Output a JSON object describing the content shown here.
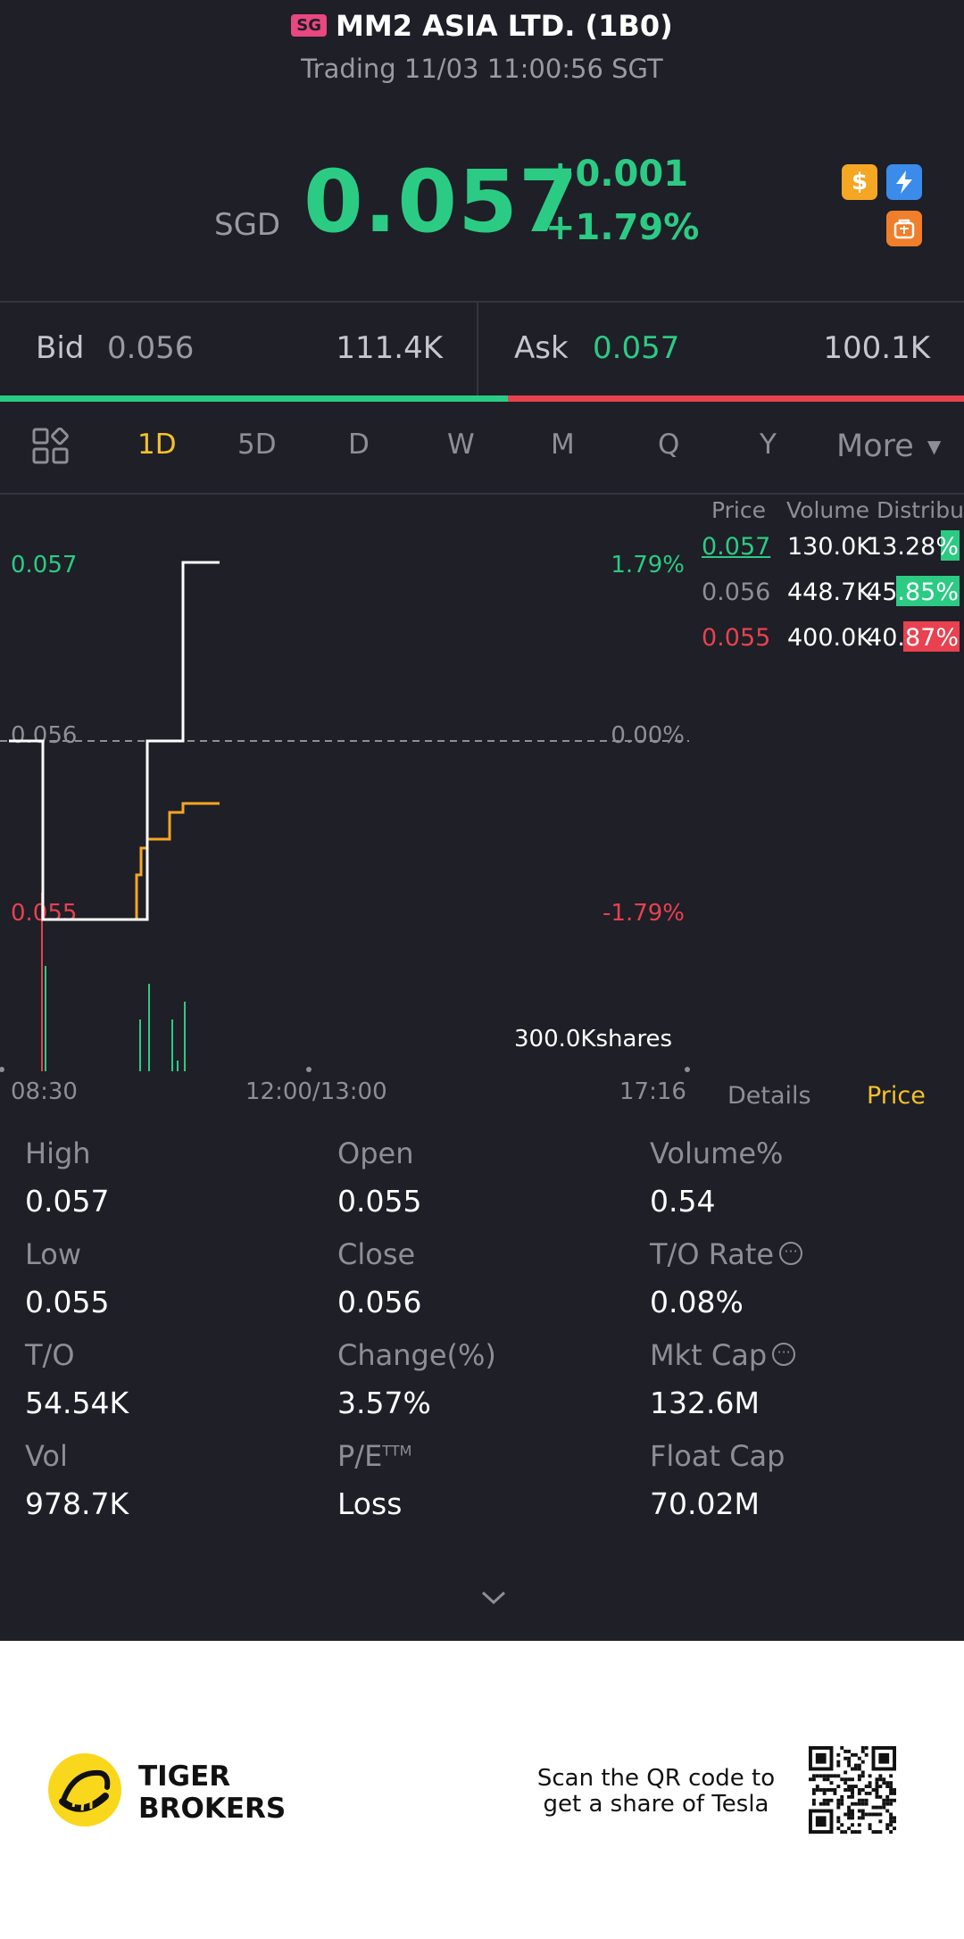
{
  "header": {
    "market_badge": "SG",
    "title": "MM2 ASIA LTD. (1B0)",
    "status": "Trading 11/03 11:00:56 SGT"
  },
  "quote": {
    "currency": "SGD",
    "last": "0.057",
    "change": "+0.001",
    "change_pct": "+1.79%",
    "up_color": "#2bcb84",
    "down_color": "#e8414f",
    "icons": [
      "dollar-icon",
      "lightning-icon",
      "bag-icon"
    ]
  },
  "bid_ask": {
    "bid_label": "Bid",
    "bid_price": "0.056",
    "bid_size": "111.4K",
    "ask_label": "Ask",
    "ask_price": "0.057",
    "ask_size": "100.1K",
    "bid_share": 0.527
  },
  "period_tabs": [
    "1D",
    "5D",
    "D",
    "W",
    "M",
    "Q",
    "Y"
  ],
  "period_more": "More",
  "active_period": "1D",
  "distribution": {
    "headers": [
      "Price",
      "Volume",
      "Distribu"
    ],
    "rows": [
      {
        "price": "0.057",
        "volume": "130.0K",
        "pct": "13.28%",
        "fill": 0.1328,
        "color": "#2bcb84"
      },
      {
        "price": "0.056",
        "volume": "448.7K",
        "pct": "45.85%",
        "fill": 0.4585,
        "color": "#2bcb84"
      },
      {
        "price": "0.055",
        "volume": "400.0K",
        "pct": "40.87%",
        "fill": 0.4087,
        "color": "#e8414f"
      }
    ]
  },
  "chart_data": {
    "type": "line",
    "y_left_ticks": [
      "0.057",
      "0.056",
      "0.055"
    ],
    "y_right_ticks": [
      "1.79%",
      "0.00%",
      "-1.79%"
    ],
    "x_ticks": [
      "08:30",
      "12:00/13:00",
      "17:16"
    ],
    "ylim": [
      0.055,
      0.057
    ],
    "reference_price": 0.056,
    "series": [
      {
        "values": [
          0.056,
          0.056,
          0.055,
          0.055,
          0.055,
          0.056,
          0.056,
          0.057,
          0.057
        ],
        "color": "#ffffff"
      },
      {
        "values": [
          0.056,
          0.055,
          0.055,
          0.05525,
          0.0554,
          0.05545,
          0.0556,
          0.05565,
          0.05565
        ],
        "color": "#f5a623"
      }
    ],
    "volume_label": "300.0Kshares"
  },
  "side_tabs": {
    "details": "Details",
    "price": "Price"
  },
  "stats": [
    [
      {
        "label": "High",
        "value": "0.057"
      },
      {
        "label": "Open",
        "value": "0.055"
      },
      {
        "label": "Volume%",
        "value": "0.54"
      }
    ],
    [
      {
        "label": "Low",
        "value": "0.055"
      },
      {
        "label": "Close",
        "value": "0.056"
      },
      {
        "label": "T/O Rate",
        "value": "0.08%"
      }
    ],
    [
      {
        "label": "T/O",
        "value": "54.54K"
      },
      {
        "label": "Change(%)",
        "value": "3.57%"
      },
      {
        "label": "Mkt Cap",
        "value": "132.6M"
      }
    ],
    [
      {
        "label": "Vol",
        "value": "978.7K"
      },
      {
        "label": "P/E",
        "value": "Loss"
      },
      {
        "label": "Float Cap",
        "value": "70.02M"
      }
    ]
  ],
  "pe_suffix": "TTM",
  "footer": {
    "brand_line1": "TIGER",
    "brand_line2": "BROKERS",
    "cta_line1": "Scan the QR code to",
    "cta_line2": "get a share of Tesla"
  }
}
